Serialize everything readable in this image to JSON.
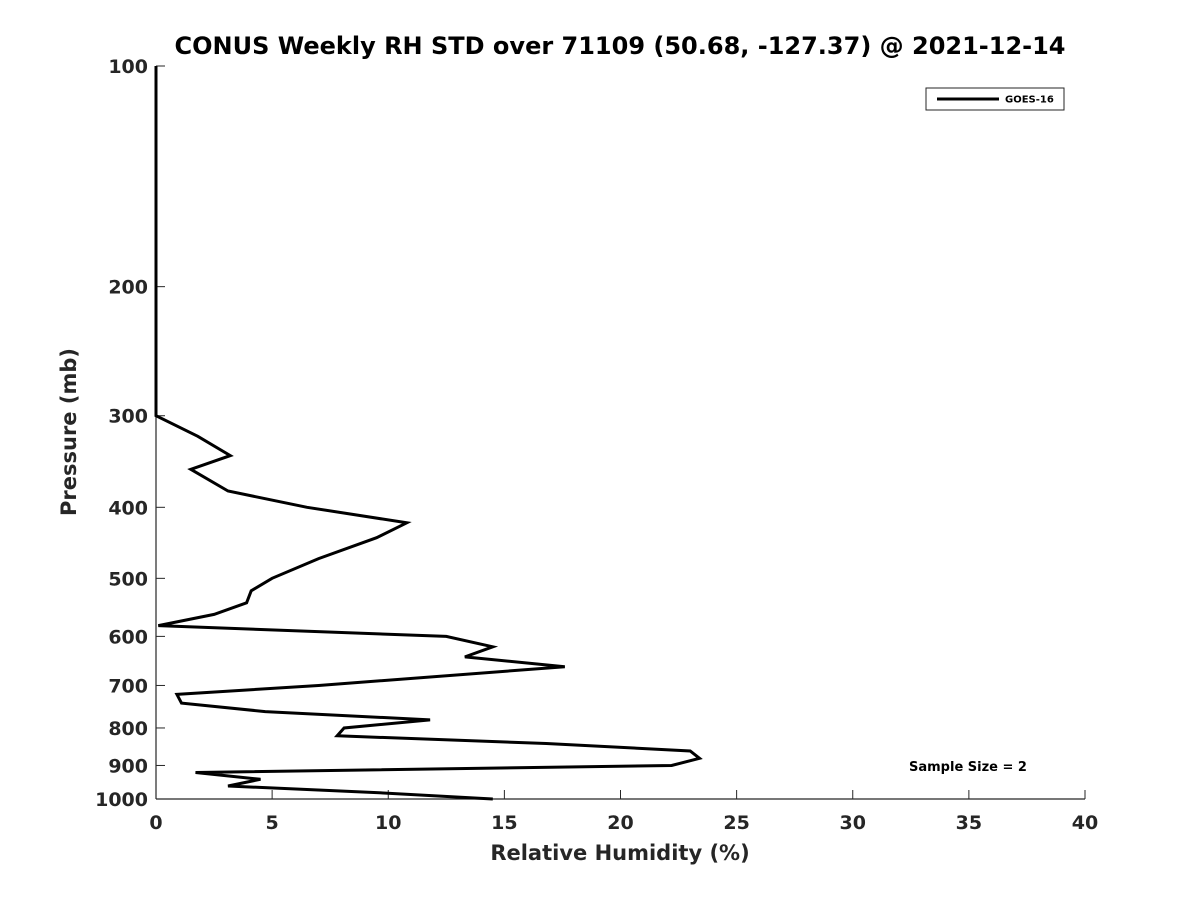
{
  "chart_data": {
    "type": "line",
    "title": "CONUS Weekly RH STD over 71109 (50.68, -127.37) @ 2021-12-14",
    "xlabel": "Relative Humidity (%)",
    "ylabel": "Pressure (mb)",
    "xlim": [
      0,
      40
    ],
    "ylim": [
      100,
      1000
    ],
    "y_scale": "log",
    "y_reversed": true,
    "grid": false,
    "xticks": [
      0,
      5,
      10,
      15,
      20,
      25,
      30,
      35,
      40
    ],
    "yticks": [
      100,
      200,
      300,
      400,
      500,
      600,
      700,
      800,
      900,
      1000
    ],
    "legend_position": "top-right",
    "series": [
      {
        "name": "GOES-16",
        "color": "#000000",
        "points": [
          [
            0,
            100
          ],
          [
            0,
            150
          ],
          [
            0,
            200
          ],
          [
            0,
            250
          ],
          [
            0,
            300
          ],
          [
            1.8,
            320
          ],
          [
            3.2,
            340
          ],
          [
            1.5,
            355
          ],
          [
            3.1,
            380
          ],
          [
            6.5,
            400
          ],
          [
            10.8,
            420
          ],
          [
            9.5,
            440
          ],
          [
            7,
            470
          ],
          [
            5,
            500
          ],
          [
            4.1,
            520
          ],
          [
            3.9,
            540
          ],
          [
            2.5,
            560
          ],
          [
            0.1,
            580
          ],
          [
            12.5,
            600
          ],
          [
            14.5,
            620
          ],
          [
            13.3,
            640
          ],
          [
            17.6,
            660
          ],
          [
            7,
            700
          ],
          [
            0.9,
            720
          ],
          [
            1.1,
            740
          ],
          [
            4.7,
            760
          ],
          [
            11.8,
            780
          ],
          [
            8.1,
            800
          ],
          [
            7.8,
            820
          ],
          [
            16.8,
            840
          ],
          [
            23,
            860
          ],
          [
            23.4,
            880
          ],
          [
            22.2,
            900
          ],
          [
            1.7,
            920
          ],
          [
            4.5,
            940
          ],
          [
            3.1,
            960
          ],
          [
            9.5,
            980
          ],
          [
            14.5,
            1000
          ]
        ]
      }
    ],
    "annotations": [
      {
        "text": "Sample Size = 2",
        "x": 35,
        "y": 900
      }
    ]
  }
}
